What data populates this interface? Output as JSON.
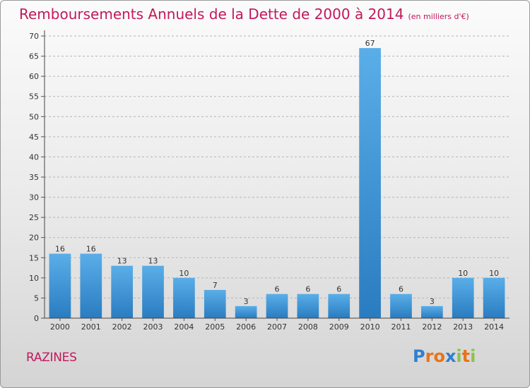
{
  "title": "Remboursements Annuels de la Dette de 2000 à 2014",
  "unit": "(en milliers d'€)",
  "commune": "RAZINES",
  "logo": {
    "letters": [
      "P",
      "r",
      "o",
      "x",
      "i",
      "t",
      "i"
    ],
    "colors": [
      "#2f7fd2",
      "#e8731b",
      "#e8731b",
      "#2f7fd2",
      "#8bc34a",
      "#e8731b",
      "#8bc34a"
    ]
  },
  "colors": {
    "accent": "#c2185b",
    "bar_light": "#5aaee8",
    "bar_dark": "#2a7cc0"
  },
  "chart_data": {
    "type": "bar",
    "categories": [
      "2000",
      "2001",
      "2002",
      "2003",
      "2004",
      "2005",
      "2006",
      "2007",
      "2008",
      "2009",
      "2010",
      "2011",
      "2012",
      "2013",
      "2014"
    ],
    "values": [
      16,
      16,
      13,
      13,
      10,
      7,
      3,
      6,
      6,
      6,
      67,
      6,
      3,
      10,
      10
    ],
    "ylim": [
      0,
      70
    ],
    "yticks": [
      0,
      5,
      10,
      15,
      20,
      25,
      30,
      35,
      40,
      45,
      50,
      55,
      60,
      65,
      70
    ],
    "grid": true
  }
}
